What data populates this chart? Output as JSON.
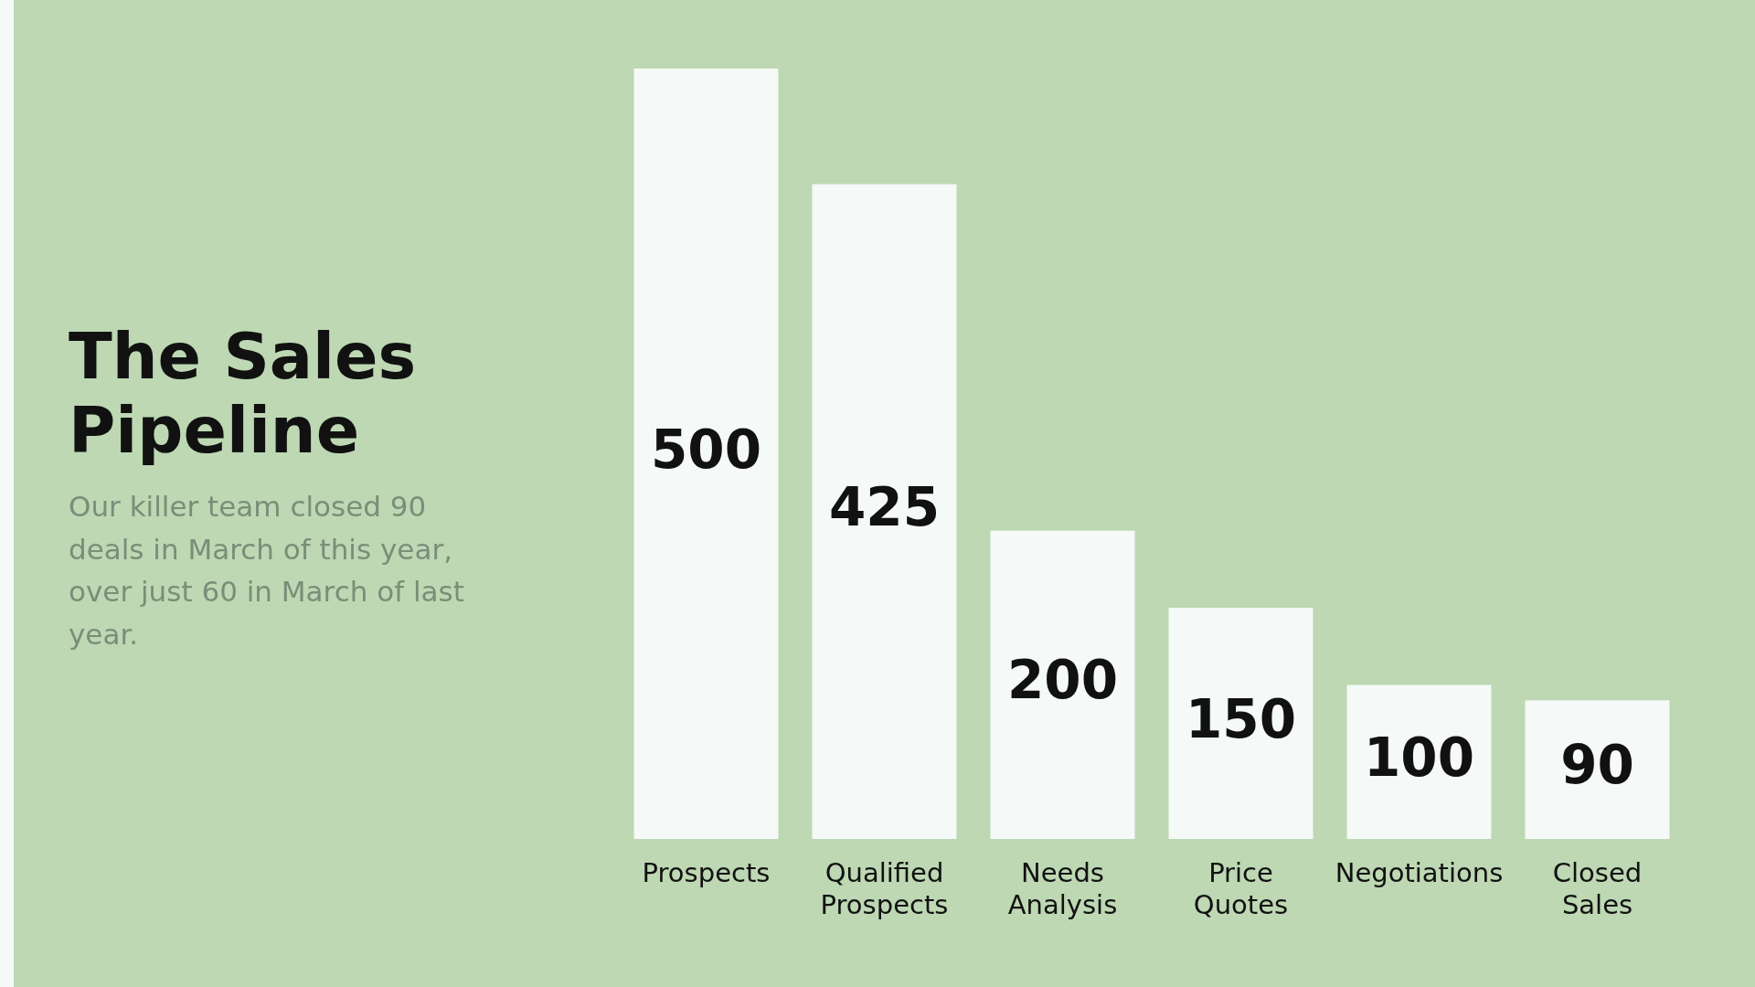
{
  "chart_data": {
    "type": "bar",
    "title": "The Sales Pipeline",
    "subtitle": "Our killer team closed 90 deals in March of this year, over just 60 in March of last year.",
    "categories": [
      "Prospects",
      "Qualified Prospects",
      "Needs Analysis",
      "Price Quotes",
      "Negotiations",
      "Closed Sales"
    ],
    "values": [
      500,
      425,
      200,
      150,
      100,
      90
    ],
    "color": "#f5f9f7",
    "data_labels": true,
    "grid": false,
    "legend": false
  }
}
